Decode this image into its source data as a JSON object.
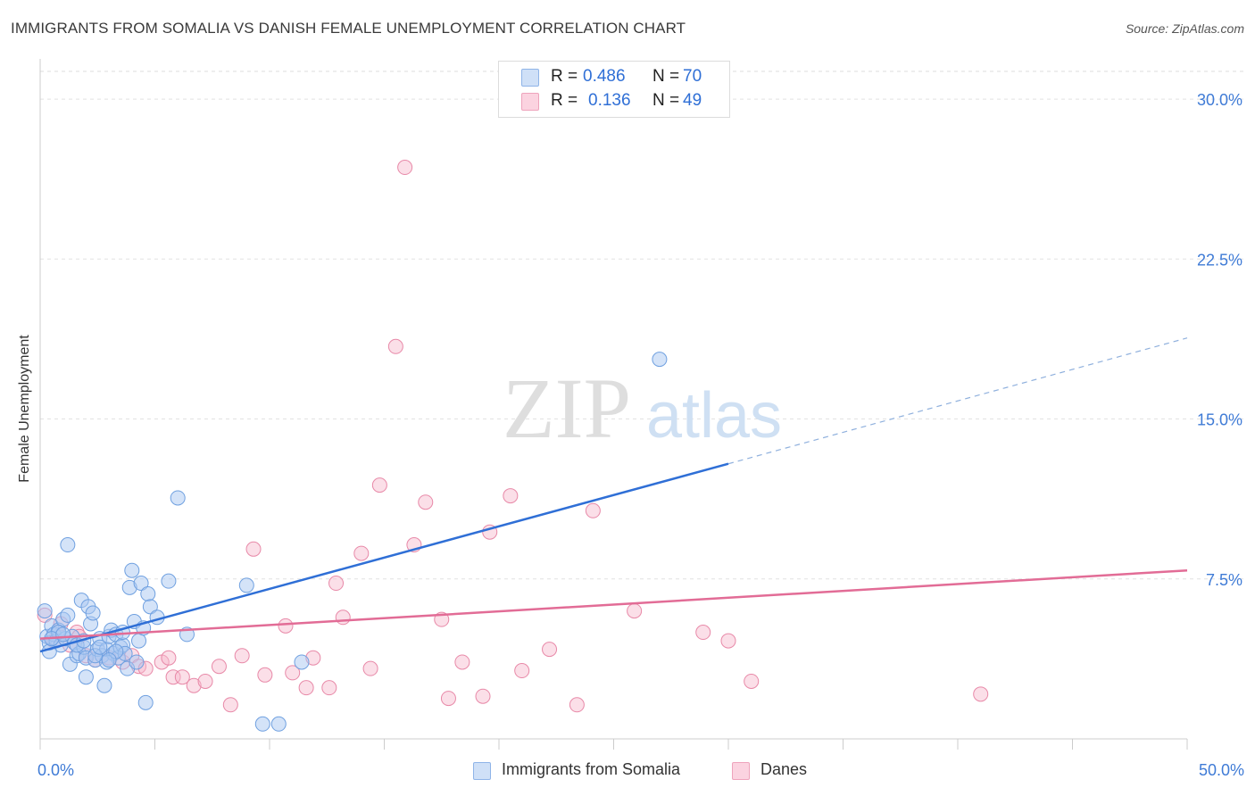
{
  "header": {
    "title": "IMMIGRANTS FROM SOMALIA VS DANISH FEMALE UNEMPLOYMENT CORRELATION CHART",
    "source": "Source: ZipAtlas.com"
  },
  "watermark": {
    "zip": "ZIP",
    "atlas": "atlas"
  },
  "legend": {
    "rows": [
      {
        "r_label": "R =",
        "r_value": "0.486",
        "n_label": "N =",
        "n_value": "70",
        "color": "#a9c8f2"
      },
      {
        "r_label": "R =",
        "r_value": "0.136",
        "n_label": "N =",
        "n_value": "49",
        "color": "#f6b9cc"
      }
    ]
  },
  "bottom_legend": {
    "items": [
      {
        "label": "Immigrants from Somalia",
        "color": "#a9c8f2"
      },
      {
        "label": "Danes",
        "color": "#f6b9cc"
      }
    ]
  },
  "chart_data": {
    "type": "scatter",
    "title": "IMMIGRANTS FROM SOMALIA VS DANISH FEMALE UNEMPLOYMENT CORRELATION CHART",
    "xlabel": "",
    "ylabel": "Female Unemployment",
    "xlim": [
      0,
      50
    ],
    "ylim": [
      0,
      31.3
    ],
    "x_tick_labels": [
      "0.0%",
      "50.0%"
    ],
    "y_ticks": [
      7.5,
      15.0,
      22.5,
      30.0
    ],
    "y_tick_labels": [
      "7.5%",
      "15.0%",
      "22.5%",
      "30.0%"
    ],
    "grid": true,
    "legend_position": "top-center",
    "series": [
      {
        "name": "Immigrants from Somalia",
        "color": "#a9c8f2",
        "stroke": "#6fa0e0",
        "trend_color": "#2f6fd6",
        "trend": {
          "x0": 0.0,
          "y0": 4.1,
          "x1": 30.0,
          "y1": 12.9,
          "dash_to_x": 50.0,
          "dash_to_y": 18.8
        },
        "points": [
          [
            0.2,
            6.0
          ],
          [
            0.3,
            4.8
          ],
          [
            0.4,
            4.5
          ],
          [
            0.5,
            5.3
          ],
          [
            0.6,
            4.9
          ],
          [
            0.7,
            4.6
          ],
          [
            0.8,
            5.1
          ],
          [
            0.9,
            4.4
          ],
          [
            1.0,
            5.6
          ],
          [
            1.1,
            4.7
          ],
          [
            0.4,
            4.1
          ],
          [
            1.2,
            5.8
          ],
          [
            1.3,
            3.5
          ],
          [
            1.4,
            4.8
          ],
          [
            1.5,
            4.5
          ],
          [
            1.6,
            3.9
          ],
          [
            1.7,
            4.0
          ],
          [
            1.8,
            6.5
          ],
          [
            1.9,
            4.3
          ],
          [
            2.0,
            3.8
          ],
          [
            2.1,
            6.2
          ],
          [
            2.2,
            5.4
          ],
          [
            2.3,
            5.9
          ],
          [
            2.4,
            3.7
          ],
          [
            2.5,
            4.2
          ],
          [
            2.6,
            4.7
          ],
          [
            2.7,
            3.9
          ],
          [
            2.8,
            2.5
          ],
          [
            2.9,
            4.2
          ],
          [
            3.0,
            4.8
          ],
          [
            3.1,
            5.1
          ],
          [
            3.2,
            4.0
          ],
          [
            3.3,
            4.9
          ],
          [
            3.4,
            3.8
          ],
          [
            3.5,
            4.3
          ],
          [
            3.6,
            4.4
          ],
          [
            3.7,
            4.0
          ],
          [
            3.8,
            3.3
          ],
          [
            3.9,
            7.1
          ],
          [
            4.0,
            7.9
          ],
          [
            4.1,
            5.5
          ],
          [
            4.2,
            3.6
          ],
          [
            4.3,
            4.6
          ],
          [
            4.4,
            7.3
          ],
          [
            4.5,
            5.2
          ],
          [
            4.6,
            1.7
          ],
          [
            4.7,
            6.8
          ],
          [
            4.8,
            6.2
          ],
          [
            5.1,
            5.7
          ],
          [
            5.6,
            7.4
          ],
          [
            6.0,
            11.3
          ],
          [
            6.4,
            4.9
          ],
          [
            9.0,
            7.2
          ],
          [
            9.7,
            0.7
          ],
          [
            10.4,
            0.7
          ],
          [
            11.4,
            3.6
          ],
          [
            27.0,
            17.8
          ],
          [
            1.2,
            9.1
          ],
          [
            2.0,
            2.9
          ],
          [
            2.9,
            3.6
          ],
          [
            0.8,
            5.0
          ],
          [
            1.6,
            4.4
          ],
          [
            2.4,
            3.9
          ],
          [
            3.3,
            4.1
          ],
          [
            0.5,
            4.7
          ],
          [
            1.9,
            4.6
          ],
          [
            2.6,
            4.3
          ],
          [
            3.6,
            5.0
          ],
          [
            1.0,
            4.9
          ],
          [
            3.0,
            3.7
          ]
        ]
      },
      {
        "name": "Danes",
        "color": "#f6b9cc",
        "stroke": "#e889a8",
        "trend_color": "#e26c96",
        "trend": {
          "x0": 0.0,
          "y0": 4.7,
          "x1": 50.0,
          "y1": 7.9
        },
        "points": [
          [
            0.2,
            5.8
          ],
          [
            0.6,
            4.6
          ],
          [
            0.9,
            5.4
          ],
          [
            1.3,
            4.4
          ],
          [
            1.6,
            5.0
          ],
          [
            1.7,
            4.8
          ],
          [
            2.0,
            3.9
          ],
          [
            2.4,
            3.7
          ],
          [
            3.0,
            3.8
          ],
          [
            3.6,
            3.6
          ],
          [
            4.0,
            3.9
          ],
          [
            4.3,
            3.4
          ],
          [
            4.6,
            3.3
          ],
          [
            5.3,
            3.6
          ],
          [
            5.6,
            3.8
          ],
          [
            5.8,
            2.9
          ],
          [
            6.2,
            2.9
          ],
          [
            6.7,
            2.5
          ],
          [
            7.2,
            2.7
          ],
          [
            7.8,
            3.4
          ],
          [
            8.3,
            1.6
          ],
          [
            8.8,
            3.9
          ],
          [
            9.3,
            8.9
          ],
          [
            9.8,
            3.0
          ],
          [
            10.7,
            5.3
          ],
          [
            11.0,
            3.1
          ],
          [
            11.6,
            2.4
          ],
          [
            11.9,
            3.8
          ],
          [
            12.6,
            2.4
          ],
          [
            12.9,
            7.3
          ],
          [
            13.2,
            5.7
          ],
          [
            14.0,
            8.7
          ],
          [
            14.4,
            3.3
          ],
          [
            14.8,
            11.9
          ],
          [
            15.5,
            18.4
          ],
          [
            15.9,
            26.8
          ],
          [
            16.3,
            9.1
          ],
          [
            16.8,
            11.1
          ],
          [
            17.5,
            5.6
          ],
          [
            17.8,
            1.9
          ],
          [
            18.4,
            3.6
          ],
          [
            19.3,
            2.0
          ],
          [
            19.6,
            9.7
          ],
          [
            20.5,
            11.4
          ],
          [
            21.0,
            3.2
          ],
          [
            22.2,
            4.2
          ],
          [
            23.4,
            1.6
          ],
          [
            24.1,
            10.7
          ],
          [
            25.9,
            6.0
          ]
        ],
        "extra_points": [
          [
            28.9,
            5.0
          ],
          [
            30.0,
            4.6
          ],
          [
            31.0,
            2.7
          ],
          [
            41.0,
            2.1
          ]
        ]
      }
    ]
  }
}
